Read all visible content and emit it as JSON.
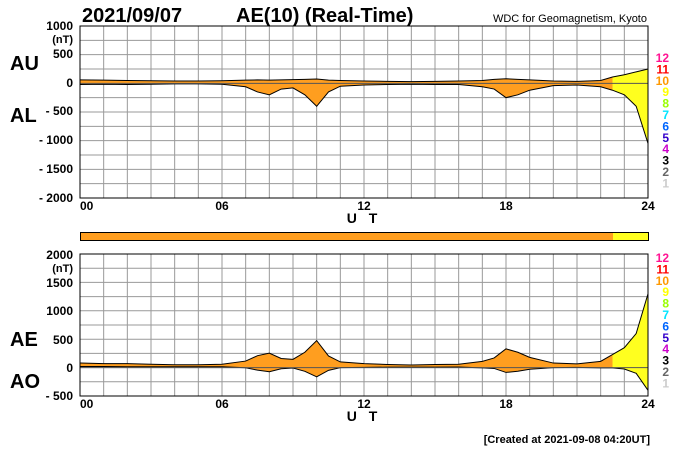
{
  "header": {
    "date": "2021/09/07",
    "title": "AE(10) (Real-Time)",
    "source": "WDC for Geomagnetism, Kyoto"
  },
  "footer": {
    "created": "[Created at 2021-09-08 04:20UT]"
  },
  "colors": {
    "fill_main": "#FF9E1F",
    "fill_recent": "#FFFF1F",
    "quality_bar": "#FF9E1F",
    "quality_bar_end": "#FFFF1F"
  },
  "legend": {
    "stations": [
      {
        "label": "12",
        "color": "#FF1493"
      },
      {
        "label": "11",
        "color": "#FF0000"
      },
      {
        "label": "10",
        "color": "#FF9900"
      },
      {
        "label": "9",
        "color": "#FFFF00"
      },
      {
        "label": "8",
        "color": "#99FF00"
      },
      {
        "label": "7",
        "color": "#00E5FF"
      },
      {
        "label": "6",
        "color": "#0066FF"
      },
      {
        "label": "5",
        "color": "#3300CC"
      },
      {
        "label": "4",
        "color": "#CC00CC"
      },
      {
        "label": "3",
        "color": "#000000"
      },
      {
        "label": "2",
        "color": "#666666"
      },
      {
        "label": "1",
        "color": "#CCCCCC"
      }
    ]
  },
  "panels": {
    "top": {
      "upper_label": "AU",
      "lower_label": "AL",
      "unit": "(nT)",
      "yticks": [
        "1000",
        "500",
        "0",
        "- 500",
        "- 1000",
        "- 1500",
        "- 2000"
      ],
      "xticks": [
        "00",
        "06",
        "12",
        "18",
        "24"
      ],
      "xlabel": "U T"
    },
    "bottom": {
      "upper_label": "AE",
      "lower_label": "AO",
      "unit": "(nT)",
      "yticks": [
        "2000",
        "1500",
        "1000",
        "500",
        "0",
        "- 500"
      ],
      "xticks": [
        "00",
        "06",
        "12",
        "18",
        "24"
      ],
      "xlabel": "U T"
    }
  },
  "chart_data": [
    {
      "type": "area",
      "series": [
        {
          "name": "AU",
          "x": [
            0,
            1,
            2,
            3,
            4,
            5,
            6,
            7,
            7.5,
            8,
            8.5,
            9,
            9.5,
            10,
            10.5,
            11,
            12,
            13,
            14,
            15,
            16,
            17,
            17.5,
            18,
            18.5,
            19,
            20,
            21,
            22,
            22.5,
            23,
            23.5,
            24
          ],
          "values": [
            60,
            55,
            50,
            45,
            40,
            40,
            45,
            55,
            60,
            55,
            60,
            65,
            70,
            75,
            55,
            50,
            40,
            35,
            30,
            35,
            40,
            50,
            70,
            80,
            70,
            60,
            40,
            35,
            50,
            110,
            150,
            200,
            250
          ]
        },
        {
          "name": "AL",
          "x": [
            0,
            1,
            2,
            3,
            4,
            5,
            6,
            7,
            7.5,
            8,
            8.5,
            9,
            9.5,
            10,
            10.5,
            11,
            12,
            13,
            14,
            15,
            16,
            17,
            17.5,
            18,
            18.5,
            19,
            20,
            21,
            22,
            22.5,
            23,
            23.5,
            24
          ],
          "values": [
            -20,
            -15,
            -20,
            -15,
            -10,
            -10,
            -15,
            -60,
            -150,
            -200,
            -100,
            -80,
            -200,
            -400,
            -150,
            -50,
            -30,
            -20,
            -15,
            -20,
            -20,
            -60,
            -100,
            -250,
            -200,
            -120,
            -40,
            -30,
            -60,
            -120,
            -200,
            -400,
            -1050
          ]
        }
      ],
      "xlim": [
        0,
        24
      ],
      "ylim": [
        -2000,
        1000
      ],
      "recent_start": 22.5
    },
    {
      "type": "area",
      "series": [
        {
          "name": "AE",
          "x": [
            0,
            1,
            2,
            3,
            4,
            5,
            6,
            7,
            7.5,
            8,
            8.5,
            9,
            9.5,
            10,
            10.5,
            11,
            12,
            13,
            14,
            15,
            16,
            17,
            17.5,
            18,
            18.5,
            19,
            20,
            21,
            22,
            22.5,
            23,
            23.5,
            24
          ],
          "values": [
            80,
            70,
            70,
            60,
            50,
            50,
            60,
            115,
            210,
            255,
            160,
            145,
            270,
            475,
            205,
            100,
            70,
            55,
            45,
            55,
            60,
            110,
            170,
            330,
            270,
            180,
            80,
            65,
            110,
            230,
            350,
            600,
            1300
          ]
        },
        {
          "name": "AO",
          "x": [
            0,
            1,
            2,
            3,
            4,
            5,
            6,
            7,
            7.5,
            8,
            8.5,
            9,
            9.5,
            10,
            10.5,
            11,
            12,
            13,
            14,
            15,
            16,
            17,
            17.5,
            18,
            18.5,
            19,
            20,
            21,
            22,
            22.5,
            23,
            23.5,
            24
          ],
          "values": [
            20,
            20,
            15,
            15,
            15,
            15,
            15,
            -3,
            -45,
            -73,
            -20,
            -8,
            -65,
            -163,
            -48,
            0,
            5,
            8,
            8,
            8,
            10,
            -5,
            -15,
            -85,
            -65,
            -30,
            0,
            3,
            -5,
            -5,
            -25,
            -100,
            -400
          ]
        }
      ],
      "xlim": [
        0,
        24
      ],
      "ylim": [
        -500,
        2000
      ],
      "recent_start": 22.5
    }
  ]
}
